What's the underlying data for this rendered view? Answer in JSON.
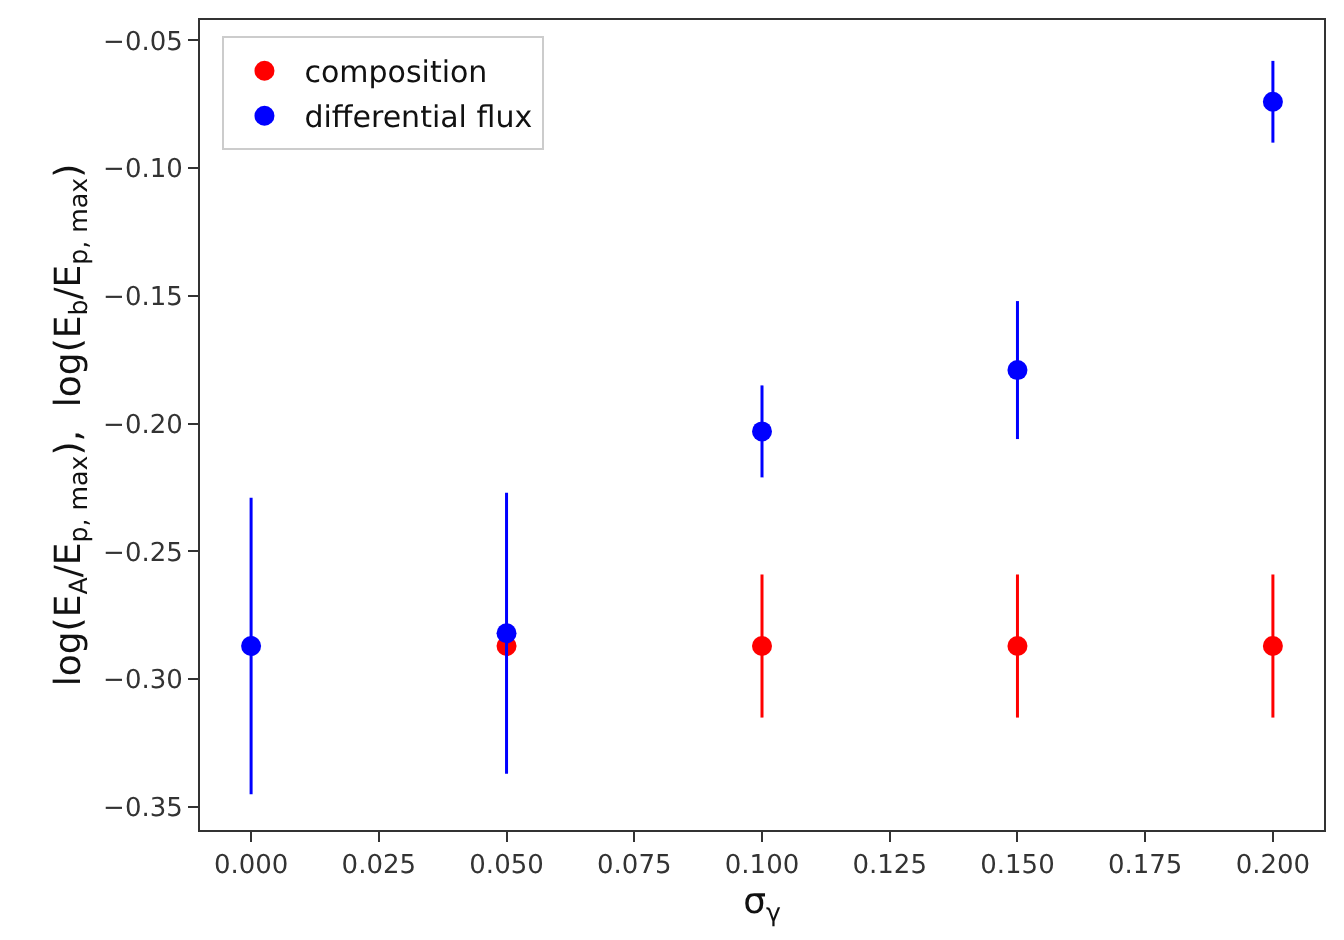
{
  "chart_data": {
    "type": "scatter",
    "xlabel": "σ$_{γ}$",
    "ylabel": "log(E$_{A}$/E$_{p, max}$),  log(E$_{b}$/E$_{p, max}$)",
    "x": [
      0.0,
      0.05,
      0.1,
      0.15,
      0.2
    ],
    "series": [
      {
        "name": "composition",
        "color": "#ff0000",
        "values": [
          null,
          -0.287,
          -0.287,
          -0.287,
          -0.287
        ],
        "errors": [
          null,
          null,
          0.028,
          0.028,
          0.028
        ]
      },
      {
        "name": "differential flux",
        "color": "#0000ff",
        "values": [
          -0.287,
          -0.282,
          -0.203,
          -0.179,
          -0.074
        ],
        "errors": [
          0.058,
          0.055,
          0.018,
          0.027,
          0.016
        ]
      }
    ],
    "xlim": [
      -0.01,
      0.21
    ],
    "xticks": [
      {
        "value": 0.0,
        "label": "0.000"
      },
      {
        "value": 0.025,
        "label": "0.025"
      },
      {
        "value": 0.05,
        "label": "0.050"
      },
      {
        "value": 0.075,
        "label": "0.075"
      },
      {
        "value": 0.1,
        "label": "0.100"
      },
      {
        "value": 0.125,
        "label": "0.125"
      },
      {
        "value": 0.15,
        "label": "0.150"
      },
      {
        "value": 0.175,
        "label": "0.175"
      },
      {
        "value": 0.2,
        "label": "0.200"
      }
    ],
    "ylim": [
      -0.359,
      -0.042
    ],
    "yticks": [
      {
        "value": -0.35,
        "label": "−0.35"
      },
      {
        "value": -0.3,
        "label": "−0.30"
      },
      {
        "value": -0.25,
        "label": "−0.25"
      },
      {
        "value": -0.2,
        "label": "−0.20"
      },
      {
        "value": -0.15,
        "label": "−0.15"
      },
      {
        "value": -0.1,
        "label": "−0.10"
      },
      {
        "value": -0.05,
        "label": "−0.05"
      }
    ],
    "legend": "top left",
    "marker": "circle"
  }
}
